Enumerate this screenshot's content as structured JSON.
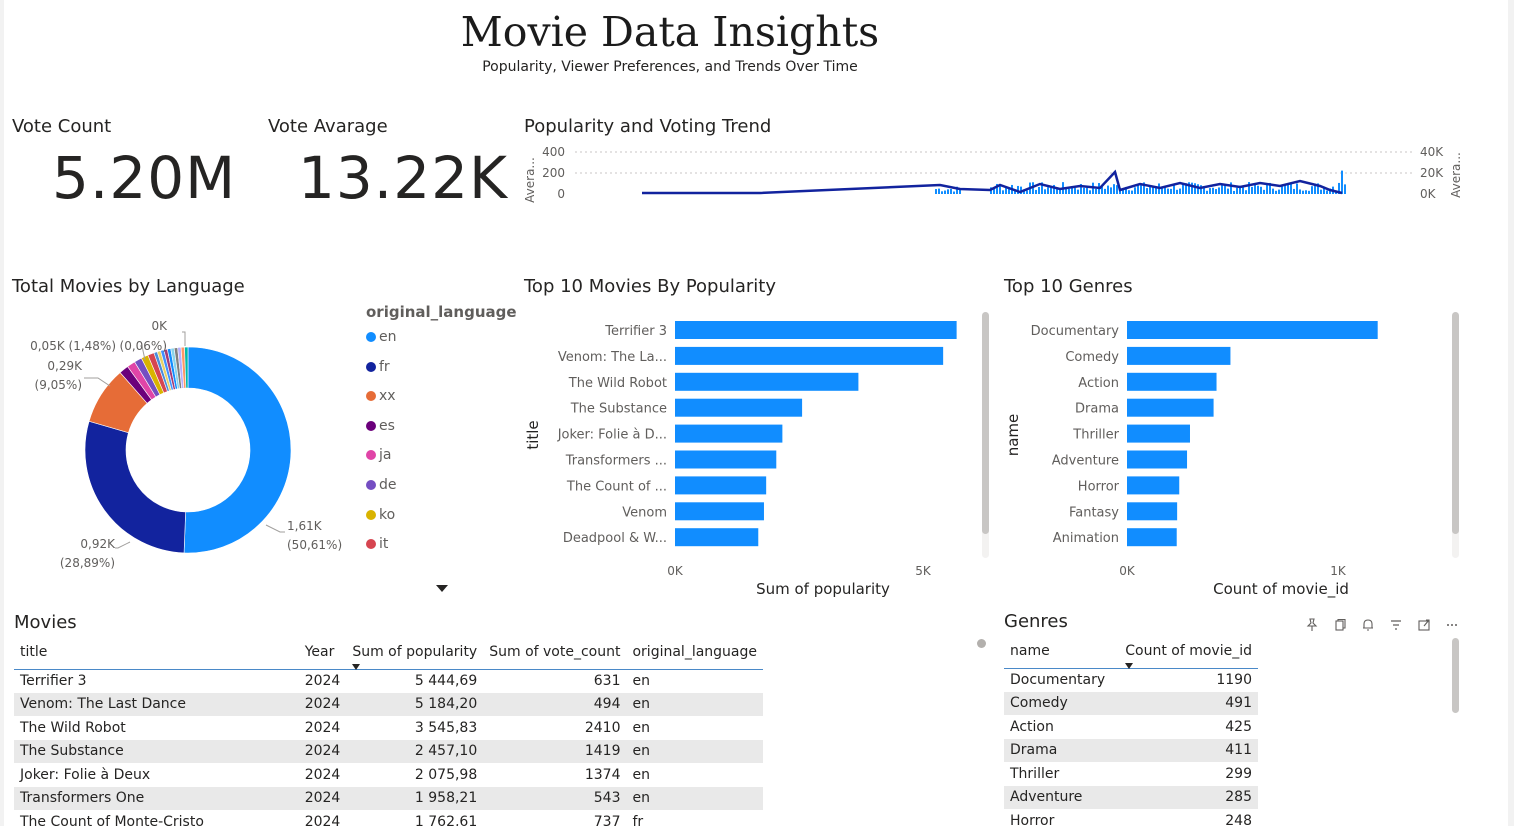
{
  "header": {
    "title": "Movie Data Insights",
    "subtitle": "Popularity, Viewer Preferences, and Trends Over Time"
  },
  "cards": {
    "vote_count": {
      "label": "Vote Count",
      "value": "5.20M"
    },
    "vote_average": {
      "label": "Vote Avarage",
      "value": "13.22K"
    }
  },
  "trend": {
    "title": "Popularity and Voting Trend",
    "left_axis_title": "Avera...",
    "right_axis_title": "Avera...",
    "left_ticks": [
      "400",
      "200",
      "0"
    ],
    "right_ticks": [
      "40K",
      "20K",
      "0K"
    ]
  },
  "language": {
    "title": "Total Movies by Language",
    "legend_title": "original_language",
    "data_labels": {
      "en": "1,61K",
      "en_pct": "(50,61%)",
      "fr": "0,92K",
      "fr_pct": "(28,89%)",
      "xx": "0,29K",
      "xx_pct": "(9,05%)",
      "es": "0,05K (1,48%)",
      "tiny": "0K",
      "tiny_pct": "(0,06%)"
    },
    "legend": [
      {
        "label": "en",
        "color": "#118DFF"
      },
      {
        "label": "fr",
        "color": "#12239E"
      },
      {
        "label": "xx",
        "color": "#E66C37"
      },
      {
        "label": "es",
        "color": "#6B007B"
      },
      {
        "label": "ja",
        "color": "#E044A7"
      },
      {
        "label": "de",
        "color": "#744EC2"
      },
      {
        "label": "ko",
        "color": "#D9B300"
      },
      {
        "label": "it",
        "color": "#D64550"
      }
    ]
  },
  "top_movies": {
    "title": "Top 10 Movies By Popularity",
    "y_axis_title": "title",
    "x_axis_title": "Sum of popularity",
    "x_ticks": [
      "0K",
      "5K"
    ]
  },
  "top_genres": {
    "title": "Top 10 Genres",
    "y_axis_title": "name",
    "x_axis_title": "Count of movie_id",
    "x_ticks": [
      "0K",
      "1K"
    ]
  },
  "movies_table": {
    "title": "Movies",
    "columns": {
      "title": "title",
      "year": "Year",
      "popularity": "Sum of popularity",
      "vote_count": "Sum of vote_count",
      "language": "original_language"
    },
    "rows": [
      {
        "title": "Terrifier 3",
        "year": "2024",
        "popularity": "5 444,69",
        "vote_count": "631",
        "language": "en"
      },
      {
        "title": "Venom: The Last Dance",
        "year": "2024",
        "popularity": "5 184,20",
        "vote_count": "494",
        "language": "en"
      },
      {
        "title": "The Wild Robot",
        "year": "2024",
        "popularity": "3 545,83",
        "vote_count": "2410",
        "language": "en"
      },
      {
        "title": "The Substance",
        "year": "2024",
        "popularity": "2 457,10",
        "vote_count": "1419",
        "language": "en"
      },
      {
        "title": "Joker: Folie à Deux",
        "year": "2024",
        "popularity": "2 075,98",
        "vote_count": "1374",
        "language": "en"
      },
      {
        "title": "Transformers One",
        "year": "2024",
        "popularity": "1 958,21",
        "vote_count": "543",
        "language": "en"
      },
      {
        "title": "The Count of Monte-Cristo",
        "year": "2024",
        "popularity": "1 762,61",
        "vote_count": "737",
        "language": "fr"
      }
    ]
  },
  "genres_table": {
    "title": "Genres",
    "columns": {
      "name": "name",
      "count": "Count of movie_id"
    },
    "rows": [
      {
        "name": "Documentary",
        "count": "1190"
      },
      {
        "name": "Comedy",
        "count": "491"
      },
      {
        "name": "Action",
        "count": "425"
      },
      {
        "name": "Drama",
        "count": "411"
      },
      {
        "name": "Thriller",
        "count": "299"
      },
      {
        "name": "Adventure",
        "count": "285"
      },
      {
        "name": "Horror",
        "count": "248"
      }
    ]
  },
  "header_icons": [
    "pin-icon",
    "copy-icon",
    "bell-icon",
    "filter-icon",
    "focus-mode-icon",
    "more-options-icon"
  ],
  "chart_data": [
    {
      "type": "bar",
      "title": "Top 10 Movies By Popularity",
      "orientation": "horizontal",
      "categories": [
        "Terrifier 3",
        "Venom: The La...",
        "The Wild Robot",
        "The Substance",
        "Joker: Folie à D...",
        "Transformers ...",
        "The Count of ...",
        "Venom",
        "Deadpool & W..."
      ],
      "values": [
        5444.69,
        5184.2,
        3545.83,
        2457.1,
        2075.98,
        1958.21,
        1762.61,
        1720,
        1610
      ],
      "xlabel": "Sum of popularity",
      "ylabel": "title",
      "xlim": [
        0,
        5800
      ],
      "color": "#118DFF"
    },
    {
      "type": "bar",
      "title": "Top 10 Genres",
      "orientation": "horizontal",
      "categories": [
        "Documentary",
        "Comedy",
        "Action",
        "Drama",
        "Thriller",
        "Adventure",
        "Horror",
        "Fantasy",
        "Animation"
      ],
      "values": [
        1190,
        491,
        425,
        411,
        299,
        285,
        248,
        238,
        236
      ],
      "xlabel": "Count of movie_id",
      "ylabel": "name",
      "xlim": [
        0,
        1500
      ],
      "color": "#118DFF"
    },
    {
      "type": "pie",
      "title": "Total Movies by Language",
      "labels": [
        "en",
        "fr",
        "xx",
        "es",
        "ja",
        "de",
        "ko",
        "it"
      ],
      "values": [
        50.61,
        28.89,
        9.05,
        1.48,
        1.3,
        1.2,
        1.1,
        1.0
      ],
      "donut": true
    },
    {
      "type": "line",
      "title": "Popularity and Voting Trend",
      "y_left_ticks": [
        "400",
        "200",
        "0"
      ],
      "y_right_ticks": [
        "40K",
        "20K",
        "0K"
      ]
    }
  ]
}
